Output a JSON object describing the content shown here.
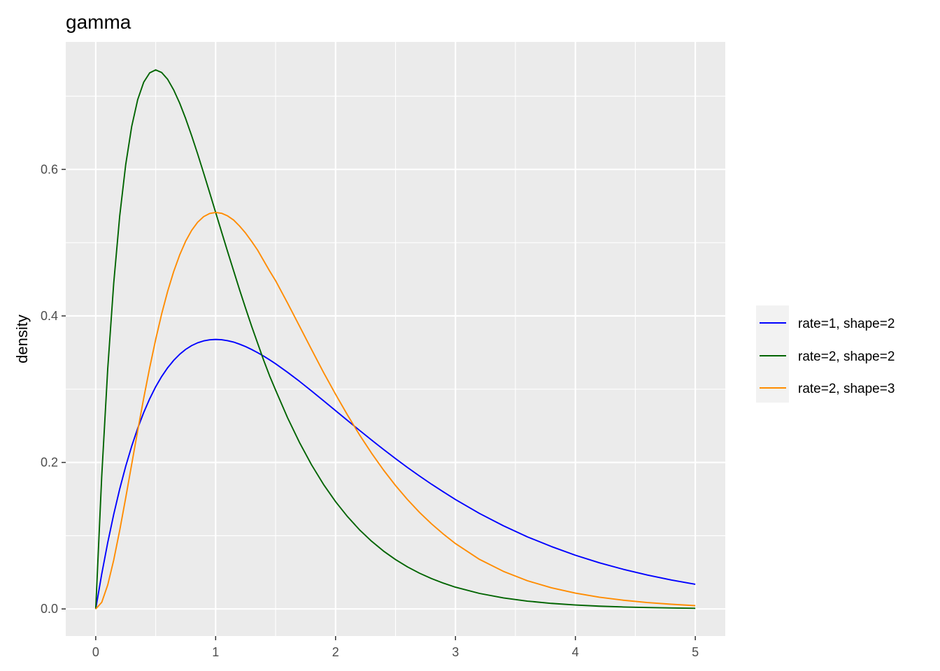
{
  "chart_data": {
    "type": "line",
    "title": "gamma",
    "xlabel": "",
    "ylabel": "density",
    "xlim": [
      -0.25,
      5.25
    ],
    "ylim": [
      -0.037,
      0.774
    ],
    "x_ticks": [
      0,
      1,
      2,
      3,
      4,
      5
    ],
    "x_tick_labels": [
      "0",
      "1",
      "2",
      "3",
      "4",
      "5"
    ],
    "y_ticks": [
      0.0,
      0.2,
      0.4,
      0.6
    ],
    "y_tick_labels": [
      "0.0",
      "0.2",
      "0.4",
      "0.6"
    ],
    "x_minor_ticks": [
      0.5,
      1.5,
      2.5,
      3.5,
      4.5
    ],
    "y_minor_ticks": [
      0.1,
      0.3,
      0.5,
      0.7
    ],
    "grid": true,
    "panel_background": "#ebebeb",
    "grid_color": "#ffffff",
    "legend_position": "right",
    "series": [
      {
        "name": "rate=1, shape=2",
        "color": "#0000ff",
        "x": [
          0,
          0.05,
          0.1,
          0.15,
          0.2,
          0.25,
          0.3,
          0.35,
          0.4,
          0.45,
          0.5,
          0.55,
          0.6,
          0.65,
          0.7,
          0.75,
          0.8,
          0.85,
          0.9,
          0.95,
          1.0,
          1.05,
          1.1,
          1.15,
          1.2,
          1.25,
          1.3,
          1.35,
          1.4,
          1.45,
          1.5,
          1.6,
          1.7,
          1.8,
          1.9,
          2.0,
          2.1,
          2.2,
          2.3,
          2.4,
          2.5,
          2.6,
          2.7,
          2.8,
          2.9,
          3.0,
          3.2,
          3.4,
          3.6,
          3.8,
          4.0,
          4.2,
          4.4,
          4.6,
          4.8,
          5.0
        ],
        "y": [
          0,
          0.0476,
          0.0905,
          0.1291,
          0.1637,
          0.1947,
          0.2222,
          0.2466,
          0.2681,
          0.2869,
          0.3033,
          0.3173,
          0.3293,
          0.3393,
          0.3476,
          0.3543,
          0.3595,
          0.3633,
          0.3659,
          0.3674,
          0.3679,
          0.3675,
          0.3662,
          0.3643,
          0.3614,
          0.3581,
          0.3542,
          0.3498,
          0.3452,
          0.3401,
          0.3347,
          0.323,
          0.3106,
          0.2975,
          0.2842,
          0.2707,
          0.2572,
          0.2438,
          0.2306,
          0.2177,
          0.2052,
          0.1931,
          0.1815,
          0.1703,
          0.1597,
          0.1494,
          0.1304,
          0.1135,
          0.0984,
          0.0852,
          0.0733,
          0.063,
          0.0541,
          0.0463,
          0.0395,
          0.0337
        ]
      },
      {
        "name": "rate=2, shape=2",
        "color": "#006400",
        "x": [
          0,
          0.05,
          0.1,
          0.15,
          0.2,
          0.25,
          0.3,
          0.35,
          0.4,
          0.45,
          0.5,
          0.55,
          0.6,
          0.65,
          0.7,
          0.75,
          0.8,
          0.85,
          0.9,
          0.95,
          1.0,
          1.05,
          1.1,
          1.15,
          1.2,
          1.25,
          1.3,
          1.35,
          1.4,
          1.45,
          1.5,
          1.6,
          1.7,
          1.8,
          1.9,
          2.0,
          2.1,
          2.2,
          2.3,
          2.4,
          2.5,
          2.6,
          2.7,
          2.8,
          2.9,
          3.0,
          3.2,
          3.4,
          3.6,
          3.8,
          4.0,
          4.2,
          4.4,
          4.6,
          4.8,
          5.0
        ],
        "y": [
          0,
          0.181,
          0.3275,
          0.4445,
          0.5363,
          0.6065,
          0.6586,
          0.6952,
          0.719,
          0.7318,
          0.7358,
          0.7323,
          0.7229,
          0.7085,
          0.6905,
          0.6694,
          0.646,
          0.6211,
          0.595,
          0.5683,
          0.5413,
          0.5144,
          0.4877,
          0.4616,
          0.4355,
          0.4104,
          0.386,
          0.3628,
          0.3397,
          0.3182,
          0.2987,
          0.2609,
          0.227,
          0.1967,
          0.1699,
          0.1465,
          0.126,
          0.108,
          0.0925,
          0.079,
          0.0674,
          0.0574,
          0.0488,
          0.0415,
          0.0352,
          0.0297,
          0.0212,
          0.0151,
          0.0107,
          0.0076,
          0.0054,
          0.0038,
          0.0027,
          0.0019,
          0.0013,
          0.0009
        ]
      },
      {
        "name": "rate=2, shape=3",
        "color": "#ff8c00",
        "x": [
          0,
          0.05,
          0.1,
          0.15,
          0.2,
          0.25,
          0.3,
          0.35,
          0.4,
          0.45,
          0.5,
          0.55,
          0.6,
          0.65,
          0.7,
          0.75,
          0.8,
          0.85,
          0.9,
          0.95,
          1.0,
          1.05,
          1.1,
          1.15,
          1.2,
          1.25,
          1.3,
          1.35,
          1.4,
          1.45,
          1.5,
          1.6,
          1.7,
          1.8,
          1.9,
          2.0,
          2.1,
          2.2,
          2.3,
          2.4,
          2.5,
          2.6,
          2.7,
          2.8,
          2.9,
          3.0,
          3.2,
          3.4,
          3.6,
          3.8,
          4.0,
          4.2,
          4.4,
          4.6,
          4.8,
          5.0
        ],
        "y": [
          0,
          0.009,
          0.0327,
          0.0667,
          0.1073,
          0.1516,
          0.1976,
          0.2433,
          0.2876,
          0.3293,
          0.3679,
          0.4028,
          0.4337,
          0.4605,
          0.4832,
          0.502,
          0.5168,
          0.5279,
          0.5355,
          0.5398,
          0.5413,
          0.5401,
          0.5365,
          0.5309,
          0.5226,
          0.513,
          0.5018,
          0.4898,
          0.4756,
          0.4614,
          0.4481,
          0.4175,
          0.3859,
          0.3541,
          0.3228,
          0.2931,
          0.2646,
          0.2376,
          0.2127,
          0.1896,
          0.1685,
          0.1493,
          0.1318,
          0.1162,
          0.1021,
          0.0892,
          0.0677,
          0.0513,
          0.0385,
          0.0289,
          0.0216,
          0.016,
          0.0119,
          0.0087,
          0.0064,
          0.0045
        ]
      }
    ]
  }
}
